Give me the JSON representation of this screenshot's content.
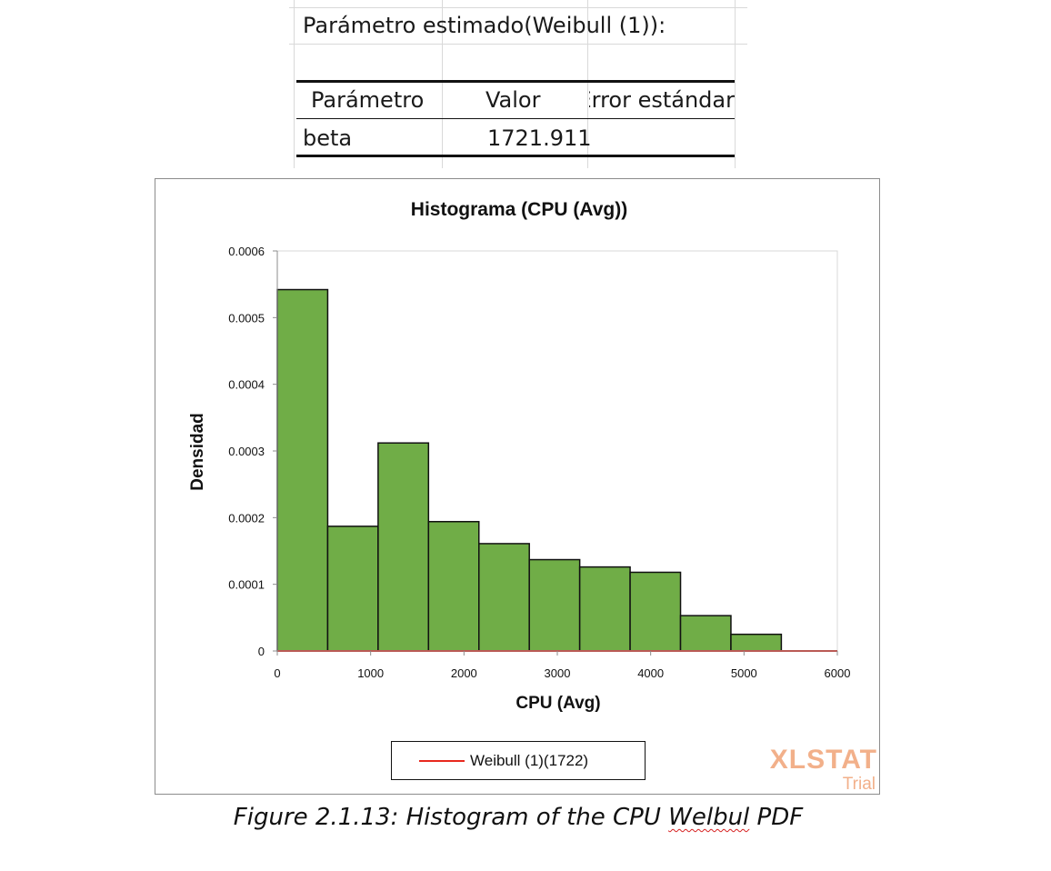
{
  "sheet": {
    "title": "Parámetro estimado(Weibull (1)):",
    "headers": [
      "Parámetro",
      "Valor",
      "Error estándar"
    ],
    "row": [
      "beta",
      "1721.911",
      ""
    ]
  },
  "chart_data": {
    "type": "bar",
    "title": "Histograma  (CPU (Avg))",
    "xlabel": "CPU (Avg)",
    "ylabel": "Densidad",
    "xlim": [
      0,
      6000
    ],
    "ylim": [
      0,
      0.0006
    ],
    "xticks": [
      "0",
      "1000",
      "2000",
      "3000",
      "4000",
      "5000",
      "6000"
    ],
    "yticks": [
      "0",
      "0.0001",
      "0.0002",
      "0.0003",
      "0.0004",
      "0.0005",
      "0.0006"
    ],
    "bins": [
      {
        "x0": 0,
        "x1": 540,
        "density": 0.000542
      },
      {
        "x0": 540,
        "x1": 1080,
        "density": 0.000187
      },
      {
        "x0": 1080,
        "x1": 1620,
        "density": 0.000312
      },
      {
        "x0": 1620,
        "x1": 2160,
        "density": 0.000194
      },
      {
        "x0": 2160,
        "x1": 2700,
        "density": 0.000161
      },
      {
        "x0": 2700,
        "x1": 3240,
        "density": 0.000137
      },
      {
        "x0": 3240,
        "x1": 3780,
        "density": 0.000126
      },
      {
        "x0": 3780,
        "x1": 4320,
        "density": 0.000118
      },
      {
        "x0": 4320,
        "x1": 4860,
        "density": 5.3e-05
      },
      {
        "x0": 4860,
        "x1": 5400,
        "density": 2.5e-05
      }
    ],
    "series": [
      {
        "name": "Weibull (1)(1722)",
        "x": [
          0,
          6000
        ],
        "values": [
          0,
          0
        ]
      }
    ],
    "bar_color": "#70ad47",
    "line_color": "#e8281e",
    "grid": false,
    "legend_position": "bottom"
  },
  "legend": {
    "label": "Weibull (1)(1722)"
  },
  "watermark": {
    "brand": "XLSTAT",
    "edition": "Trial"
  },
  "caption": {
    "prefix": "Figure 2.1.13: Histogram of the CPU ",
    "misspelled": "Welbul",
    "suffix": " PDF"
  }
}
